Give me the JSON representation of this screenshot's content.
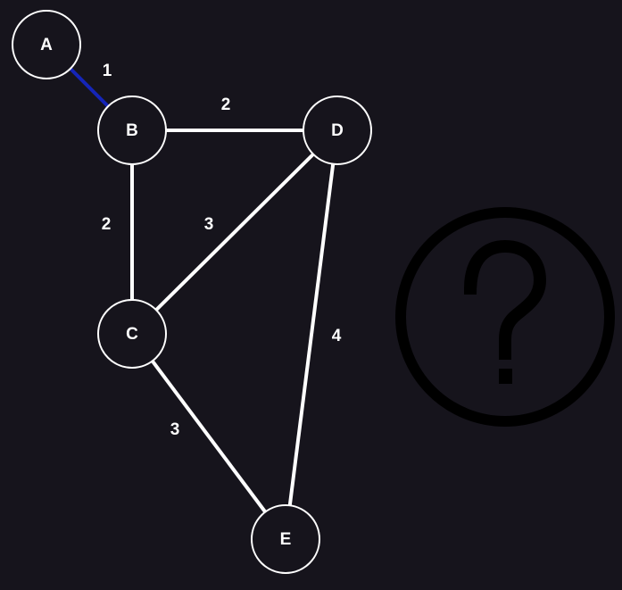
{
  "colors": {
    "background": "#16141c",
    "node_fill": "#16141c",
    "node_stroke": "#ffffff",
    "edge_default": "#ffffff",
    "edge_highlight": "#1525b8",
    "help_icon": "#000000"
  },
  "graph": {
    "nodes": [
      {
        "id": "A",
        "label": "A"
      },
      {
        "id": "B",
        "label": "B"
      },
      {
        "id": "C",
        "label": "C"
      },
      {
        "id": "D",
        "label": "D"
      },
      {
        "id": "E",
        "label": "E"
      }
    ],
    "edges": [
      {
        "from": "A",
        "to": "B",
        "weight": "1",
        "highlighted": true
      },
      {
        "from": "B",
        "to": "D",
        "weight": "2",
        "highlighted": false
      },
      {
        "from": "B",
        "to": "C",
        "weight": "2",
        "highlighted": false
      },
      {
        "from": "C",
        "to": "D",
        "weight": "3",
        "highlighted": false
      },
      {
        "from": "D",
        "to": "E",
        "weight": "4",
        "highlighted": false
      },
      {
        "from": "C",
        "to": "E",
        "weight": "3",
        "highlighted": false
      }
    ]
  },
  "help_icon": {
    "name": "question-mark-icon"
  }
}
